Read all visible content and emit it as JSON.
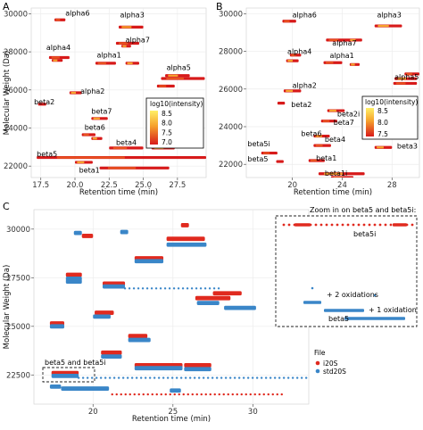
{
  "panels": [
    {
      "id": "A",
      "letter": "A",
      "xlabel": "Retention time (min)",
      "ylabel": "Molecular Weight (Da)",
      "xlim": [
        16.8,
        29.6
      ],
      "ylim": [
        21400,
        30300
      ],
      "xticks": [
        17.5,
        20.0,
        22.5,
        25.0,
        27.5
      ],
      "xtick_labels": [
        "17.5",
        "20.0",
        "22.5",
        "25.0",
        "27.5"
      ],
      "yticks": [
        22000,
        24000,
        26000,
        28000,
        30000
      ],
      "legend": {
        "title": "log10(intensity)",
        "ticks": [
          "8.5",
          "8.0",
          "7.5",
          "7.0"
        ],
        "position": "right"
      },
      "labels": [
        {
          "text": "alpha6",
          "x": 19.3,
          "y": 29900,
          "color": "#000000"
        },
        {
          "text": "alpha3",
          "x": 23.3,
          "y": 29800,
          "color": "#000000"
        },
        {
          "text": "alpha7",
          "x": 23.7,
          "y": 28500,
          "color": "#000000"
        },
        {
          "text": "alpha4",
          "x": 17.9,
          "y": 28100,
          "color": "#000000"
        },
        {
          "text": "alpha1",
          "x": 21.6,
          "y": 27700,
          "color": "#000000"
        },
        {
          "text": "alpha5",
          "x": 26.7,
          "y": 27050,
          "color": "#000000"
        },
        {
          "text": "alpha2",
          "x": 20.4,
          "y": 25800,
          "color": "#000000"
        },
        {
          "text": "beta2",
          "x": 17.0,
          "y": 25250,
          "color": "#2d6fc1"
        },
        {
          "text": "beta7",
          "x": 21.2,
          "y": 24750,
          "color": "#000000"
        },
        {
          "text": "beta6",
          "x": 20.7,
          "y": 23900,
          "color": "#000000"
        },
        {
          "text": "beta4",
          "x": 23.0,
          "y": 23100,
          "color": "#000000"
        },
        {
          "text": "beta3",
          "x": 25.8,
          "y": 23100,
          "color": "#000000"
        },
        {
          "text": "beta5",
          "x": 17.2,
          "y": 22500,
          "color": "#2d6fc1"
        },
        {
          "text": "beta1",
          "x": 20.3,
          "y": 21650,
          "color": "#2d6fc1"
        }
      ],
      "series": [
        {
          "x": [
            18.5,
            19.3
          ],
          "y": 29680
        },
        {
          "x": [
            23.2,
            25.0
          ],
          "y": 29300
        },
        {
          "x": [
            23.0,
            24.7
          ],
          "y": 28450
        },
        {
          "x": [
            23.4,
            24.1
          ],
          "y": 28300
        },
        {
          "x": [
            18.1,
            19.6
          ],
          "y": 27700
        },
        {
          "x": [
            18.3,
            19.1
          ],
          "y": 27550
        },
        {
          "x": [
            21.5,
            23.0
          ],
          "y": 27400
        },
        {
          "x": [
            23.7,
            24.7
          ],
          "y": 27400
        },
        {
          "x": [
            26.3,
            29.5
          ],
          "y": 26600
        },
        {
          "x": [
            26.6,
            28.4
          ],
          "y": 26750
        },
        {
          "x": [
            26.0,
            27.3
          ],
          "y": 26200
        },
        {
          "x": [
            19.6,
            20.5
          ],
          "y": 25850
        },
        {
          "x": [
            17.3,
            17.9
          ],
          "y": 25250
        },
        {
          "x": [
            21.2,
            22.4
          ],
          "y": 24500
        },
        {
          "x": [
            20.5,
            21.5
          ],
          "y": 23650
        },
        {
          "x": [
            21.2,
            22.0
          ],
          "y": 23450
        },
        {
          "x": [
            22.5,
            25.0
          ],
          "y": 22950
        },
        {
          "x": [
            25.6,
            27.3
          ],
          "y": 22950
        },
        {
          "x": [
            17.2,
            29.6
          ],
          "y": 22450
        },
        {
          "x": [
            20.0,
            21.3
          ],
          "y": 22200
        },
        {
          "x": [
            21.8,
            26.9
          ],
          "y": 21900
        }
      ]
    },
    {
      "id": "B",
      "letter": "B",
      "xlabel": "Retention time (min)",
      "ylabel": "",
      "xlim": [
        16.3,
        30.2
      ],
      "ylim": [
        21300,
        30300
      ],
      "xticks": [
        20,
        24,
        28
      ],
      "xtick_labels": [
        "20",
        "24",
        "28"
      ],
      "yticks": [
        22000,
        24000,
        26000,
        28000,
        30000
      ],
      "legend": {
        "title": "log10(intensity)",
        "ticks": [
          "8.5",
          "8.0",
          "7.5"
        ],
        "position": "right"
      },
      "labels": [
        {
          "text": "alpha6",
          "x": 20.0,
          "y": 29800,
          "color": "#000000"
        },
        {
          "text": "alpha3",
          "x": 26.8,
          "y": 29800,
          "color": "#000000"
        },
        {
          "text": "alpha7",
          "x": 23.2,
          "y": 28300,
          "color": "#000000"
        },
        {
          "text": "alpha4",
          "x": 19.6,
          "y": 27850,
          "color": "#000000"
        },
        {
          "text": "alpha1",
          "x": 23.0,
          "y": 27650,
          "color": "#000000"
        },
        {
          "text": "alpha5",
          "x": 28.2,
          "y": 26500,
          "color": "#000000"
        },
        {
          "text": "alpha2",
          "x": 20.0,
          "y": 26050,
          "color": "#000000"
        },
        {
          "text": "beta2",
          "x": 19.9,
          "y": 25050,
          "color": "#2d6fc1"
        },
        {
          "text": "beta2i",
          "x": 23.6,
          "y": 24550,
          "color": "#e02a1f"
        },
        {
          "text": "beta7",
          "x": 23.3,
          "y": 24100,
          "color": "#000000"
        },
        {
          "text": "beta6",
          "x": 20.7,
          "y": 23500,
          "color": "#000000"
        },
        {
          "text": "beta4",
          "x": 22.6,
          "y": 23200,
          "color": "#000000"
        },
        {
          "text": "beta5i",
          "x": 16.4,
          "y": 22950,
          "color": "#e02a1f"
        },
        {
          "text": "beta3",
          "x": 28.4,
          "y": 22850,
          "color": "#000000"
        },
        {
          "text": "beta5",
          "x": 16.4,
          "y": 22150,
          "color": "#2d6fc1"
        },
        {
          "text": "beta1",
          "x": 21.9,
          "y": 22200,
          "color": "#2d6fc1"
        },
        {
          "text": "beta1i",
          "x": 22.6,
          "y": 21400,
          "color": "#e02a1f"
        }
      ],
      "series": [
        {
          "x": [
            19.2,
            20.3
          ],
          "y": 29600
        },
        {
          "x": [
            26.6,
            28.8
          ],
          "y": 29350
        },
        {
          "x": [
            22.7,
            24.6
          ],
          "y": 28600
        },
        {
          "x": [
            24.5,
            25.6
          ],
          "y": 28600
        },
        {
          "x": [
            19.8,
            20.7
          ],
          "y": 27800
        },
        {
          "x": [
            19.5,
            20.5
          ],
          "y": 27500
        },
        {
          "x": [
            22.5,
            24.0
          ],
          "y": 27400
        },
        {
          "x": [
            24.6,
            25.4
          ],
          "y": 27300
        },
        {
          "x": [
            29.0,
            30.2
          ],
          "y": 26800
        },
        {
          "x": [
            28.2,
            30.0
          ],
          "y": 26550
        },
        {
          "x": [
            28.1,
            30.0
          ],
          "y": 26300
        },
        {
          "x": [
            19.3,
            20.7
          ],
          "y": 25900
        },
        {
          "x": [
            18.8,
            19.4
          ],
          "y": 25250
        },
        {
          "x": [
            22.8,
            24.2
          ],
          "y": 24850
        },
        {
          "x": [
            22.3,
            23.6
          ],
          "y": 24300
        },
        {
          "x": [
            21.7,
            23.0
          ],
          "y": 23500
        },
        {
          "x": [
            21.7,
            23.1
          ],
          "y": 23000
        },
        {
          "x": [
            26.6,
            28.0
          ],
          "y": 22900
        },
        {
          "x": [
            17.5,
            18.8
          ],
          "y": 22600
        },
        {
          "x": [
            18.7,
            19.3
          ],
          "y": 22150
        },
        {
          "x": [
            21.3,
            22.6
          ],
          "y": 22200
        },
        {
          "x": [
            22.1,
            25.8
          ],
          "y": 21500
        },
        {
          "x": [
            23.1,
            24.9
          ],
          "y": 21300
        }
      ]
    }
  ],
  "panel_c": {
    "letter": "C",
    "xlabel": "Retention time (min)",
    "ylabel": "Molecular Weight (Da)",
    "xlim": [
      16.3,
      33.5
    ],
    "ylim": [
      21000,
      31000
    ],
    "xticks": [
      20,
      25,
      30
    ],
    "xtick_labels": [
      "20",
      "25",
      "30"
    ],
    "yticks": [
      22500,
      25000,
      27500,
      30000
    ],
    "yticklabels": [
      "22500",
      "25000",
      "27500",
      "30000"
    ],
    "legend": {
      "title": "File",
      "entries": [
        {
          "name": "i20S",
          "color": "#e02a1f"
        },
        {
          "name": "std20S",
          "color": "#3a86c8"
        }
      ]
    },
    "annotations": {
      "box_label": "beta5 and beta5i",
      "zoom_title": "Zoom in on beta5 and beta5i:",
      "zoom_beta5i": "beta5i",
      "zoom_plus2": "+ 2 oxidations",
      "zoom_plus1": "+ 1 oxidation",
      "zoom_beta5": "beta5"
    },
    "series": [
      {
        "file": "i20S",
        "x": [
          19.3,
          20.0
        ],
        "y": 29650
      },
      {
        "file": "std20S",
        "x": [
          18.8,
          19.3
        ],
        "y": 29800
      },
      {
        "file": "std20S",
        "x": [
          21.7,
          22.2
        ],
        "y": 29850
      },
      {
        "file": "i20S",
        "x": [
          25.5,
          26.0
        ],
        "y": 30200
      },
      {
        "file": "i20S",
        "x": [
          24.6,
          27.0
        ],
        "y": 29500
      },
      {
        "file": "std20S",
        "x": [
          24.6,
          27.1
        ],
        "y": 29200
      },
      {
        "file": "i20S",
        "x": [
          22.6,
          24.4
        ],
        "y": 28500
      },
      {
        "file": "std20S",
        "x": [
          22.6,
          24.4
        ],
        "y": 28350
      },
      {
        "file": "i20S",
        "x": [
          18.3,
          19.3
        ],
        "y": 27650
      },
      {
        "file": "std20S",
        "x": [
          18.3,
          19.3
        ],
        "y": 27450
      },
      {
        "file": "std20S",
        "x": [
          18.3,
          19.3
        ],
        "y": 27300
      },
      {
        "file": "i20S",
        "x": [
          20.6,
          22.0
        ],
        "y": 27200
      },
      {
        "file": "std20S",
        "x": [
          20.6,
          22.0
        ],
        "y": 27050
      },
      {
        "file": "std20S",
        "x": [
          22.0,
          28.0
        ],
        "y": 26950
      },
      {
        "file": "i20S",
        "x": [
          26.4,
          28.6
        ],
        "y": 26450
      },
      {
        "file": "std20S",
        "x": [
          26.5,
          27.9
        ],
        "y": 26200
      },
      {
        "file": "i20S",
        "x": [
          27.5,
          29.3
        ],
        "y": 26700
      },
      {
        "file": "std20S",
        "x": [
          28.2,
          30.2
        ],
        "y": 25950
      },
      {
        "file": "i20S",
        "x": [
          20.1,
          21.3
        ],
        "y": 25700
      },
      {
        "file": "std20S",
        "x": [
          20.0,
          21.1
        ],
        "y": 25500
      },
      {
        "file": "i20S",
        "x": [
          17.3,
          18.2
        ],
        "y": 25150
      },
      {
        "file": "std20S",
        "x": [
          17.3,
          18.2
        ],
        "y": 25000
      },
      {
        "file": "i20S",
        "x": [
          22.2,
          23.4
        ],
        "y": 24500
      },
      {
        "file": "std20S",
        "x": [
          22.2,
          23.6
        ],
        "y": 24300
      },
      {
        "file": "i20S",
        "x": [
          20.5,
          21.8
        ],
        "y": 23650
      },
      {
        "file": "std20S",
        "x": [
          20.5,
          21.8
        ],
        "y": 23450
      },
      {
        "file": "i20S",
        "x": [
          22.6,
          25.6
        ],
        "y": 23000
      },
      {
        "file": "std20S",
        "x": [
          22.6,
          25.6
        ],
        "y": 22850
      },
      {
        "file": "i20S",
        "x": [
          25.7,
          27.4
        ],
        "y": 23000
      },
      {
        "file": "std20S",
        "x": [
          25.7,
          27.4
        ],
        "y": 22800
      },
      {
        "file": "i20S",
        "x": [
          17.4,
          19.1
        ],
        "y": 22600
      },
      {
        "file": "std20S",
        "x": [
          17.4,
          19.1
        ],
        "y": 22450
      },
      {
        "file": "std20S",
        "x": [
          19.1,
          33.5
        ],
        "y": 22350
      },
      {
        "file": "std20S",
        "x": [
          17.3,
          18.0
        ],
        "y": 21900
      },
      {
        "file": "std20S",
        "x": [
          18.0,
          21.0
        ],
        "y": 21800
      },
      {
        "file": "i20S",
        "x": [
          21.2,
          32.0
        ],
        "y": 21500
      },
      {
        "file": "std20S",
        "x": [
          24.8,
          25.5
        ],
        "y": 21700
      }
    ]
  }
}
